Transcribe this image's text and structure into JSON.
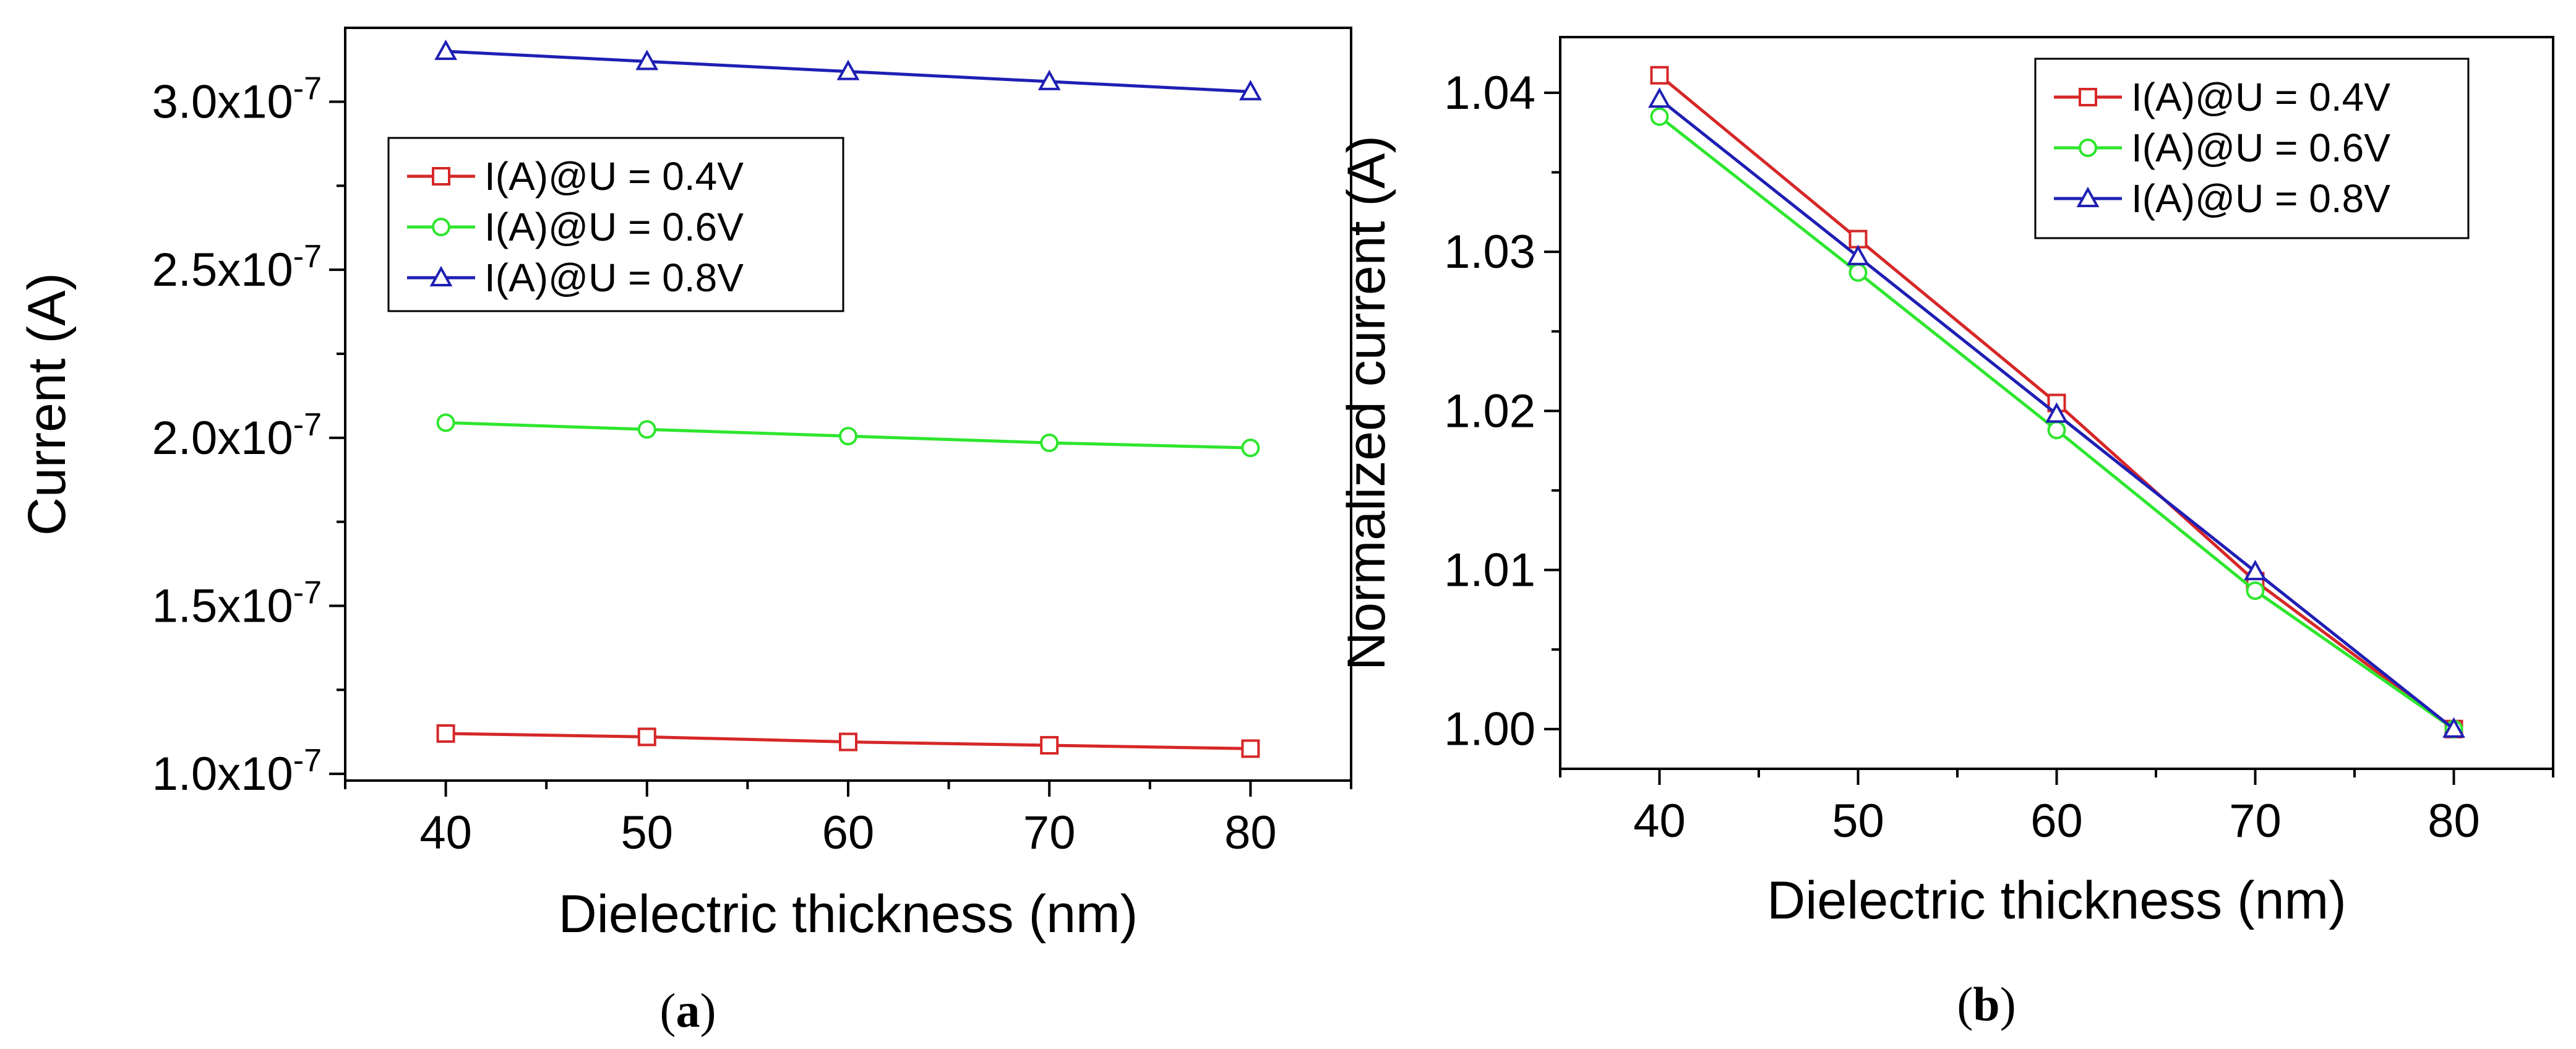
{
  "chart_data": [
    {
      "type": "line",
      "panel": "a",
      "caption": "(a)",
      "xlabel": "Dielectric thickness (nm)",
      "ylabel": "Current (A)",
      "x": [
        40,
        50,
        60,
        70,
        80
      ],
      "xlim": [
        35,
        85
      ],
      "ylim": [
        9.8e-08,
        3.22e-07
      ],
      "xticks": [
        40,
        50,
        60,
        70,
        80
      ],
      "yticks": [
        {
          "value": 1e-07,
          "mantissa": "1.0x10",
          "exp": "-7"
        },
        {
          "value": 1.5e-07,
          "mantissa": "1.5x10",
          "exp": "-7"
        },
        {
          "value": 2e-07,
          "mantissa": "2.0x10",
          "exp": "-7"
        },
        {
          "value": 2.5e-07,
          "mantissa": "2.5x10",
          "exp": "-7"
        },
        {
          "value": 3e-07,
          "mantissa": "3.0x10",
          "exp": "-7"
        }
      ],
      "legend_position": "upper-left",
      "series": [
        {
          "name": "I(A)@U = 0.4V",
          "color": "#d62728",
          "marker": "square",
          "values": [
            1.12e-07,
            1.11e-07,
            1.095e-07,
            1.085e-07,
            1.075e-07
          ]
        },
        {
          "name": "I(A)@U = 0.6V",
          "color": "#2ee62e",
          "marker": "circle",
          "values": [
            2.045e-07,
            2.025e-07,
            2.005e-07,
            1.985e-07,
            1.97e-07
          ]
        },
        {
          "name": "I(A)@U = 0.8V",
          "color": "#1f1fb4",
          "marker": "triangle",
          "values": [
            3.15e-07,
            3.12e-07,
            3.09e-07,
            3.06e-07,
            3.03e-07
          ]
        }
      ]
    },
    {
      "type": "line",
      "panel": "b",
      "caption": "(b)",
      "xlabel": "Dielectric thickness (nm)",
      "ylabel": "Normalized current (A)",
      "x": [
        40,
        50,
        60,
        70,
        80
      ],
      "xlim": [
        35,
        85
      ],
      "ylim": [
        0.9975,
        1.0435
      ],
      "xticks": [
        40,
        50,
        60,
        70,
        80
      ],
      "yticks": [
        {
          "value": 1.0,
          "label": "1.00"
        },
        {
          "value": 1.01,
          "label": "1.01"
        },
        {
          "value": 1.02,
          "label": "1.02"
        },
        {
          "value": 1.03,
          "label": "1.03"
        },
        {
          "value": 1.04,
          "label": "1.04"
        }
      ],
      "legend_position": "upper-right",
      "series": [
        {
          "name": "I(A)@U = 0.4V",
          "color": "#d62728",
          "marker": "square",
          "values": [
            1.0411,
            1.0308,
            1.0205,
            1.0093,
            1.0
          ]
        },
        {
          "name": "I(A)@U = 0.6V",
          "color": "#2ee62e",
          "marker": "circle",
          "values": [
            1.0385,
            1.0287,
            1.0188,
            1.0087,
            1.0
          ]
        },
        {
          "name": "I(A)@U = 0.8V",
          "color": "#1f1fb4",
          "marker": "triangle",
          "values": [
            1.0396,
            1.0297,
            1.0198,
            1.0099,
            1.0
          ]
        }
      ]
    }
  ]
}
